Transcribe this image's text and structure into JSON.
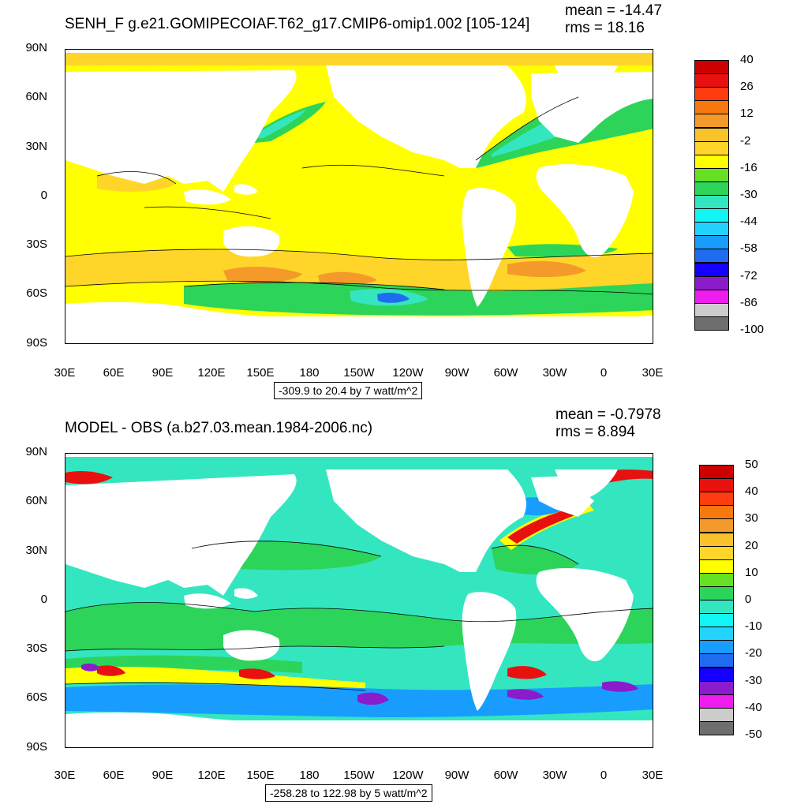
{
  "top": {
    "title": "SENH_F g.e21.GOMIPECOIAF.T62_g17.CMIP6-omip1.002 [105-124]",
    "mean": "mean = -14.47",
    "rms": "rms = 18.16",
    "range": "-309.9 to 20.4 by 7 watt/m^2",
    "lat_labels": [
      "90N",
      "60N",
      "30N",
      "0",
      "30S",
      "60S",
      "90S"
    ],
    "lon_labels": [
      "30E",
      "60E",
      "90E",
      "120E",
      "150E",
      "180",
      "150W",
      "120W",
      "90W",
      "60W",
      "30W",
      "0",
      "30E"
    ],
    "colorbar": {
      "colors": [
        "#cc0000",
        "#e8110f",
        "#ff3b10",
        "#f7780f",
        "#f49a2a",
        "#f9c22b",
        "#ffd52a",
        "#ffff00",
        "#66e022",
        "#2dd45a",
        "#33e6c0",
        "#12f5f5",
        "#22d2ff",
        "#189dff",
        "#1f6cf0",
        "#1500ff",
        "#8a1ccc",
        "#ee1cee",
        "#cccccc",
        "#6e6e6e"
      ],
      "labels": [
        "40",
        "26",
        "12",
        "-2",
        "-16",
        "-30",
        "-44",
        "-58",
        "-72",
        "-86",
        "-100"
      ]
    }
  },
  "bottom": {
    "title": "MODEL - OBS (a.b27.03.mean.1984-2006.nc)",
    "mean": "mean = -0.7978",
    "rms": "rms = 8.894",
    "range": "-258.28 to 122.98 by 5 watt/m^2",
    "lat_labels": [
      "90N",
      "60N",
      "30N",
      "0",
      "30S",
      "60S",
      "90S"
    ],
    "lon_labels": [
      "30E",
      "60E",
      "90E",
      "120E",
      "150E",
      "180",
      "150W",
      "120W",
      "90W",
      "60W",
      "30W",
      "0",
      "30E"
    ],
    "colorbar": {
      "colors": [
        "#cc0000",
        "#e8110f",
        "#ff3b10",
        "#f7780f",
        "#f49a2a",
        "#f9c22b",
        "#ffd52a",
        "#ffff00",
        "#66e022",
        "#2dd45a",
        "#33e6c0",
        "#12f5f5",
        "#22d2ff",
        "#189dff",
        "#1f6cf0",
        "#1500ff",
        "#8a1ccc",
        "#ee1cee",
        "#cccccc",
        "#6e6e6e"
      ],
      "labels": [
        "50",
        "40",
        "30",
        "20",
        "10",
        "0",
        "-10",
        "-20",
        "-30",
        "-40",
        "-50"
      ]
    }
  },
  "map_colors": {
    "land": "#ffffff",
    "top_ocean": "#ffff00",
    "top_warm": "#ffd52a",
    "top_warmer": "#f49a2a",
    "top_green": "#2dd45a",
    "top_cyan": "#33e6c0",
    "top_blue": "#1f6cf0",
    "bottom_ocean": "#33e6c0",
    "bottom_green": "#2dd45a",
    "bottom_yellow": "#ffff00",
    "bottom_red": "#e8110f",
    "bottom_blue": "#189dff",
    "bottom_purple": "#8a1ccc"
  }
}
